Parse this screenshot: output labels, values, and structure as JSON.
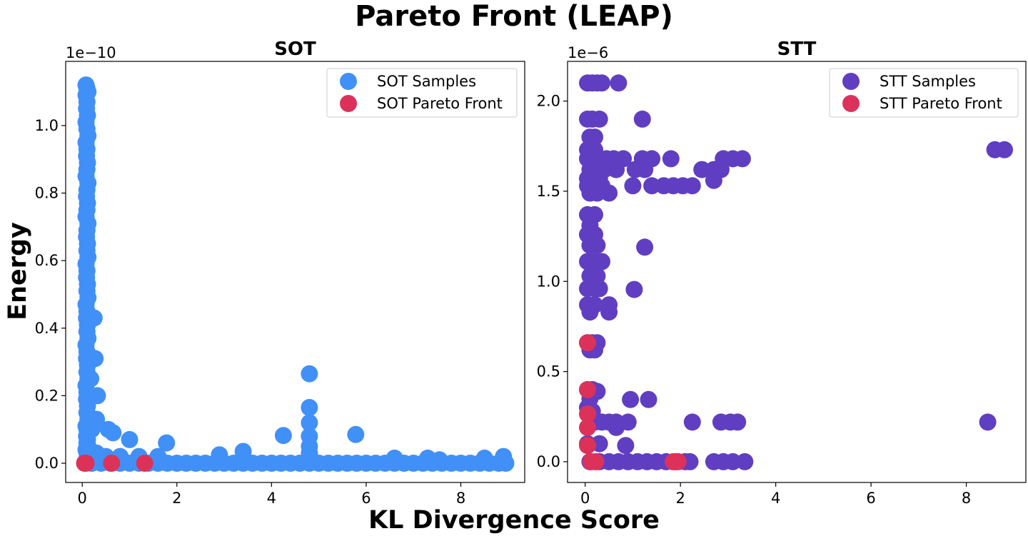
{
  "figure": {
    "title": "Pareto Front (LEAP)",
    "xlabel": "KL Divergence Score",
    "ylabel": "Energy"
  },
  "colors": {
    "sot_samples": "#4190f8",
    "stt_samples": "#603ec2",
    "pareto_front": "#dc325a"
  },
  "chart_data": [
    {
      "type": "scatter",
      "title": "SOT",
      "xlim": [
        -0.35,
        9.35
      ],
      "ylim": [
        -0.057,
        1.19
      ],
      "y_scale_label": "1e−10",
      "xticks": [
        0,
        2,
        4,
        6,
        8
      ],
      "xtick_labels": [
        "0",
        "2",
        "4",
        "6",
        "8"
      ],
      "yticks": [
        0.0,
        0.2,
        0.4,
        0.6,
        0.8,
        1.0
      ],
      "ytick_labels": [
        "0.0",
        "0.2",
        "0.4",
        "0.6",
        "0.8",
        "1.0"
      ],
      "legend_position": "top-right",
      "series": [
        {
          "name": "SOT Samples",
          "color": "#4190f8",
          "points": [
            [
              0.08,
              1.12
            ],
            [
              0.1,
              1.11
            ],
            [
              0.12,
              1.1
            ],
            [
              0.08,
              1.09
            ],
            [
              0.1,
              1.07
            ],
            [
              0.09,
              1.05
            ],
            [
              0.11,
              1.03
            ],
            [
              0.08,
              1.01
            ],
            [
              0.1,
              0.99
            ],
            [
              0.12,
              0.97
            ],
            [
              0.08,
              0.95
            ],
            [
              0.1,
              0.93
            ],
            [
              0.09,
              0.91
            ],
            [
              0.11,
              0.89
            ],
            [
              0.1,
              0.87
            ],
            [
              0.08,
              0.85
            ],
            [
              0.12,
              0.83
            ],
            [
              0.1,
              0.81
            ],
            [
              0.09,
              0.79
            ],
            [
              0.11,
              0.77
            ],
            [
              0.1,
              0.75
            ],
            [
              0.08,
              0.73
            ],
            [
              0.12,
              0.71
            ],
            [
              0.1,
              0.69
            ],
            [
              0.09,
              0.67
            ],
            [
              0.11,
              0.65
            ],
            [
              0.1,
              0.63
            ],
            [
              0.12,
              0.61
            ],
            [
              0.08,
              0.59
            ],
            [
              0.1,
              0.57
            ],
            [
              0.09,
              0.55
            ],
            [
              0.11,
              0.53
            ],
            [
              0.1,
              0.51
            ],
            [
              0.12,
              0.49
            ],
            [
              0.08,
              0.47
            ],
            [
              0.1,
              0.45
            ],
            [
              0.09,
              0.43
            ],
            [
              0.25,
              0.43
            ],
            [
              0.11,
              0.41
            ],
            [
              0.1,
              0.39
            ],
            [
              0.12,
              0.37
            ],
            [
              0.08,
              0.35
            ],
            [
              0.1,
              0.33
            ],
            [
              0.09,
              0.31
            ],
            [
              0.27,
              0.31
            ],
            [
              0.11,
              0.29
            ],
            [
              0.1,
              0.27
            ],
            [
              0.12,
              0.25
            ],
            [
              0.18,
              0.25
            ],
            [
              0.08,
              0.23
            ],
            [
              0.1,
              0.21
            ],
            [
              0.32,
              0.2
            ],
            [
              0.09,
              0.19
            ],
            [
              0.11,
              0.17
            ],
            [
              0.1,
              0.15
            ],
            [
              0.12,
              0.13
            ],
            [
              0.3,
              0.13
            ],
            [
              0.08,
              0.11
            ],
            [
              0.1,
              0.1
            ],
            [
              0.2,
              0.1
            ],
            [
              0.55,
              0.1
            ],
            [
              0.65,
              0.09
            ],
            [
              0.09,
              0.08
            ],
            [
              0.11,
              0.07
            ],
            [
              1.0,
              0.07
            ],
            [
              0.1,
              0.06
            ],
            [
              0.12,
              0.05
            ],
            [
              1.78,
              0.06
            ],
            [
              0.08,
              0.04
            ],
            [
              0.1,
              0.03
            ],
            [
              0.3,
              0.03
            ],
            [
              0.5,
              0.02
            ],
            [
              0.8,
              0.02
            ],
            [
              1.2,
              0.02
            ],
            [
              1.6,
              0.02
            ],
            [
              0.09,
              0.01
            ],
            [
              2.9,
              0.025
            ],
            [
              3.4,
              0.035
            ],
            [
              4.8,
              0.265
            ],
            [
              4.8,
              0.165
            ],
            [
              4.8,
              0.12
            ],
            [
              4.8,
              0.08
            ],
            [
              4.8,
              0.05
            ],
            [
              4.8,
              0.03
            ],
            [
              4.25,
              0.082
            ],
            [
              5.78,
              0.085
            ],
            [
              6.6,
              0.015
            ],
            [
              7.3,
              0.015
            ],
            [
              7.55,
              0.01
            ],
            [
              8.5,
              0.015
            ],
            [
              8.9,
              0.02
            ],
            [
              0.2,
              0.0
            ],
            [
              0.4,
              0.0
            ],
            [
              0.6,
              0.0
            ],
            [
              0.8,
              0.0
            ],
            [
              1.0,
              0.0
            ],
            [
              1.2,
              0.0
            ],
            [
              1.4,
              0.0
            ],
            [
              1.6,
              0.0
            ],
            [
              1.8,
              0.0
            ],
            [
              2.0,
              0.0
            ],
            [
              2.2,
              0.0
            ],
            [
              2.4,
              0.0
            ],
            [
              2.6,
              0.0
            ],
            [
              2.8,
              0.0
            ],
            [
              3.0,
              0.0
            ],
            [
              3.2,
              0.0
            ],
            [
              3.4,
              0.0
            ],
            [
              3.6,
              0.0
            ],
            [
              3.8,
              0.0
            ],
            [
              4.0,
              0.0
            ],
            [
              4.2,
              0.0
            ],
            [
              4.4,
              0.0
            ],
            [
              4.6,
              0.0
            ],
            [
              4.8,
              0.0
            ],
            [
              5.0,
              0.0
            ],
            [
              5.2,
              0.0
            ],
            [
              5.4,
              0.0
            ],
            [
              5.6,
              0.0
            ],
            [
              5.8,
              0.0
            ],
            [
              6.0,
              0.0
            ],
            [
              6.2,
              0.0
            ],
            [
              6.4,
              0.0
            ],
            [
              6.6,
              0.0
            ],
            [
              6.8,
              0.0
            ],
            [
              7.0,
              0.0
            ],
            [
              7.2,
              0.0
            ],
            [
              7.4,
              0.0
            ],
            [
              7.6,
              0.0
            ],
            [
              7.8,
              0.0
            ],
            [
              8.0,
              0.0
            ],
            [
              8.2,
              0.0
            ],
            [
              8.4,
              0.0
            ],
            [
              8.6,
              0.0
            ],
            [
              8.8,
              0.0
            ],
            [
              8.95,
              0.0
            ]
          ]
        },
        {
          "name": "SOT Pareto Front",
          "color": "#dc325a",
          "points": [
            [
              0.05,
              0.0
            ],
            [
              0.08,
              0.0
            ],
            [
              0.62,
              0.0
            ],
            [
              1.32,
              0.0
            ]
          ]
        }
      ]
    },
    {
      "type": "scatter",
      "title": "STT",
      "xlim": [
        -0.37,
        9.25
      ],
      "ylim": [
        -0.115,
        2.22
      ],
      "y_scale_label": "1e−6",
      "xticks": [
        0,
        2,
        4,
        6,
        8
      ],
      "xtick_labels": [
        "0",
        "2",
        "4",
        "6",
        "8"
      ],
      "yticks": [
        0.0,
        0.5,
        1.0,
        1.5,
        2.0
      ],
      "ytick_labels": [
        "0.0",
        "0.5",
        "1.0",
        "1.5",
        "2.0"
      ],
      "legend_position": "top-right",
      "series": [
        {
          "name": "STT Samples",
          "color": "#603ec2",
          "points": [
            [
              0.05,
              2.1
            ],
            [
              0.15,
              2.1
            ],
            [
              0.25,
              2.1
            ],
            [
              0.35,
              2.1
            ],
            [
              0.7,
              2.1
            ],
            [
              0.05,
              1.9
            ],
            [
              0.15,
              1.9
            ],
            [
              0.3,
              1.9
            ],
            [
              1.2,
              1.9
            ],
            [
              0.1,
              1.8
            ],
            [
              0.2,
              1.8
            ],
            [
              0.05,
              1.73
            ],
            [
              0.2,
              1.73
            ],
            [
              0.05,
              1.68
            ],
            [
              0.15,
              1.68
            ],
            [
              0.3,
              1.68
            ],
            [
              0.45,
              1.68
            ],
            [
              0.6,
              1.68
            ],
            [
              0.8,
              1.68
            ],
            [
              1.2,
              1.68
            ],
            [
              1.4,
              1.68
            ],
            [
              1.8,
              1.68
            ],
            [
              2.9,
              1.68
            ],
            [
              3.1,
              1.68
            ],
            [
              3.3,
              1.68
            ],
            [
              0.1,
              1.62
            ],
            [
              0.25,
              1.62
            ],
            [
              0.4,
              1.62
            ],
            [
              0.65,
              1.62
            ],
            [
              1.05,
              1.62
            ],
            [
              1.25,
              1.62
            ],
            [
              2.45,
              1.62
            ],
            [
              2.7,
              1.62
            ],
            [
              2.85,
              1.62
            ],
            [
              0.05,
              1.57
            ],
            [
              0.3,
              1.57
            ],
            [
              2.7,
              1.56
            ],
            [
              0.05,
              1.53
            ],
            [
              0.2,
              1.53
            ],
            [
              0.35,
              1.53
            ],
            [
              1.0,
              1.53
            ],
            [
              1.4,
              1.53
            ],
            [
              1.65,
              1.53
            ],
            [
              1.85,
              1.53
            ],
            [
              2.05,
              1.53
            ],
            [
              2.25,
              1.53
            ],
            [
              0.1,
              1.49
            ],
            [
              0.25,
              1.49
            ],
            [
              0.5,
              1.49
            ],
            [
              0.05,
              1.37
            ],
            [
              0.2,
              1.37
            ],
            [
              0.1,
              1.31
            ],
            [
              0.05,
              1.26
            ],
            [
              0.2,
              1.26
            ],
            [
              0.1,
              1.2
            ],
            [
              0.25,
              1.2
            ],
            [
              1.25,
              1.19
            ],
            [
              0.05,
              1.11
            ],
            [
              0.2,
              1.11
            ],
            [
              0.35,
              1.11
            ],
            [
              0.1,
              1.03
            ],
            [
              0.25,
              1.03
            ],
            [
              0.05,
              0.96
            ],
            [
              0.2,
              0.96
            ],
            [
              0.3,
              0.96
            ],
            [
              1.03,
              0.955
            ],
            [
              0.05,
              0.87
            ],
            [
              0.2,
              0.87
            ],
            [
              0.5,
              0.87
            ],
            [
              0.1,
              0.83
            ],
            [
              0.5,
              0.83
            ],
            [
              0.05,
              0.66
            ],
            [
              0.15,
              0.66
            ],
            [
              0.25,
              0.66
            ],
            [
              0.1,
              0.62
            ],
            [
              0.2,
              0.62
            ],
            [
              0.05,
              0.4
            ],
            [
              0.15,
              0.4
            ],
            [
              0.25,
              0.39
            ],
            [
              0.1,
              0.35
            ],
            [
              0.95,
              0.345
            ],
            [
              1.33,
              0.345
            ],
            [
              0.05,
              0.3
            ],
            [
              0.15,
              0.28
            ],
            [
              0.2,
              0.22
            ],
            [
              0.35,
              0.22
            ],
            [
              0.5,
              0.22
            ],
            [
              0.65,
              0.22
            ],
            [
              0.9,
              0.22
            ],
            [
              2.25,
              0.22
            ],
            [
              2.85,
              0.22
            ],
            [
              3.05,
              0.22
            ],
            [
              3.2,
              0.22
            ],
            [
              8.45,
              0.22
            ],
            [
              0.65,
              0.19
            ],
            [
              0.05,
              0.1
            ],
            [
              0.3,
              0.1
            ],
            [
              0.85,
              0.09
            ],
            [
              0.1,
              0.0
            ],
            [
              0.3,
              0.0
            ],
            [
              0.5,
              0.0
            ],
            [
              0.7,
              0.0
            ],
            [
              0.9,
              0.0
            ],
            [
              1.1,
              0.0
            ],
            [
              1.3,
              0.0
            ],
            [
              1.5,
              0.0
            ],
            [
              1.7,
              0.0
            ],
            [
              1.9,
              0.0
            ],
            [
              2.1,
              0.0
            ],
            [
              2.2,
              0.0
            ],
            [
              2.7,
              0.0
            ],
            [
              2.9,
              0.0
            ],
            [
              3.1,
              0.0
            ],
            [
              3.35,
              0.0
            ],
            [
              8.6,
              1.73
            ],
            [
              8.8,
              1.73
            ]
          ]
        },
        {
          "name": "STT Pareto Front",
          "color": "#dc325a",
          "points": [
            [
              0.05,
              0.66
            ],
            [
              0.05,
              0.4
            ],
            [
              0.05,
              0.265
            ],
            [
              0.05,
              0.19
            ],
            [
              0.05,
              0.09
            ],
            [
              0.12,
              0.0
            ],
            [
              0.22,
              0.0
            ],
            [
              1.85,
              0.0
            ],
            [
              1.95,
              0.0
            ]
          ]
        }
      ]
    }
  ]
}
